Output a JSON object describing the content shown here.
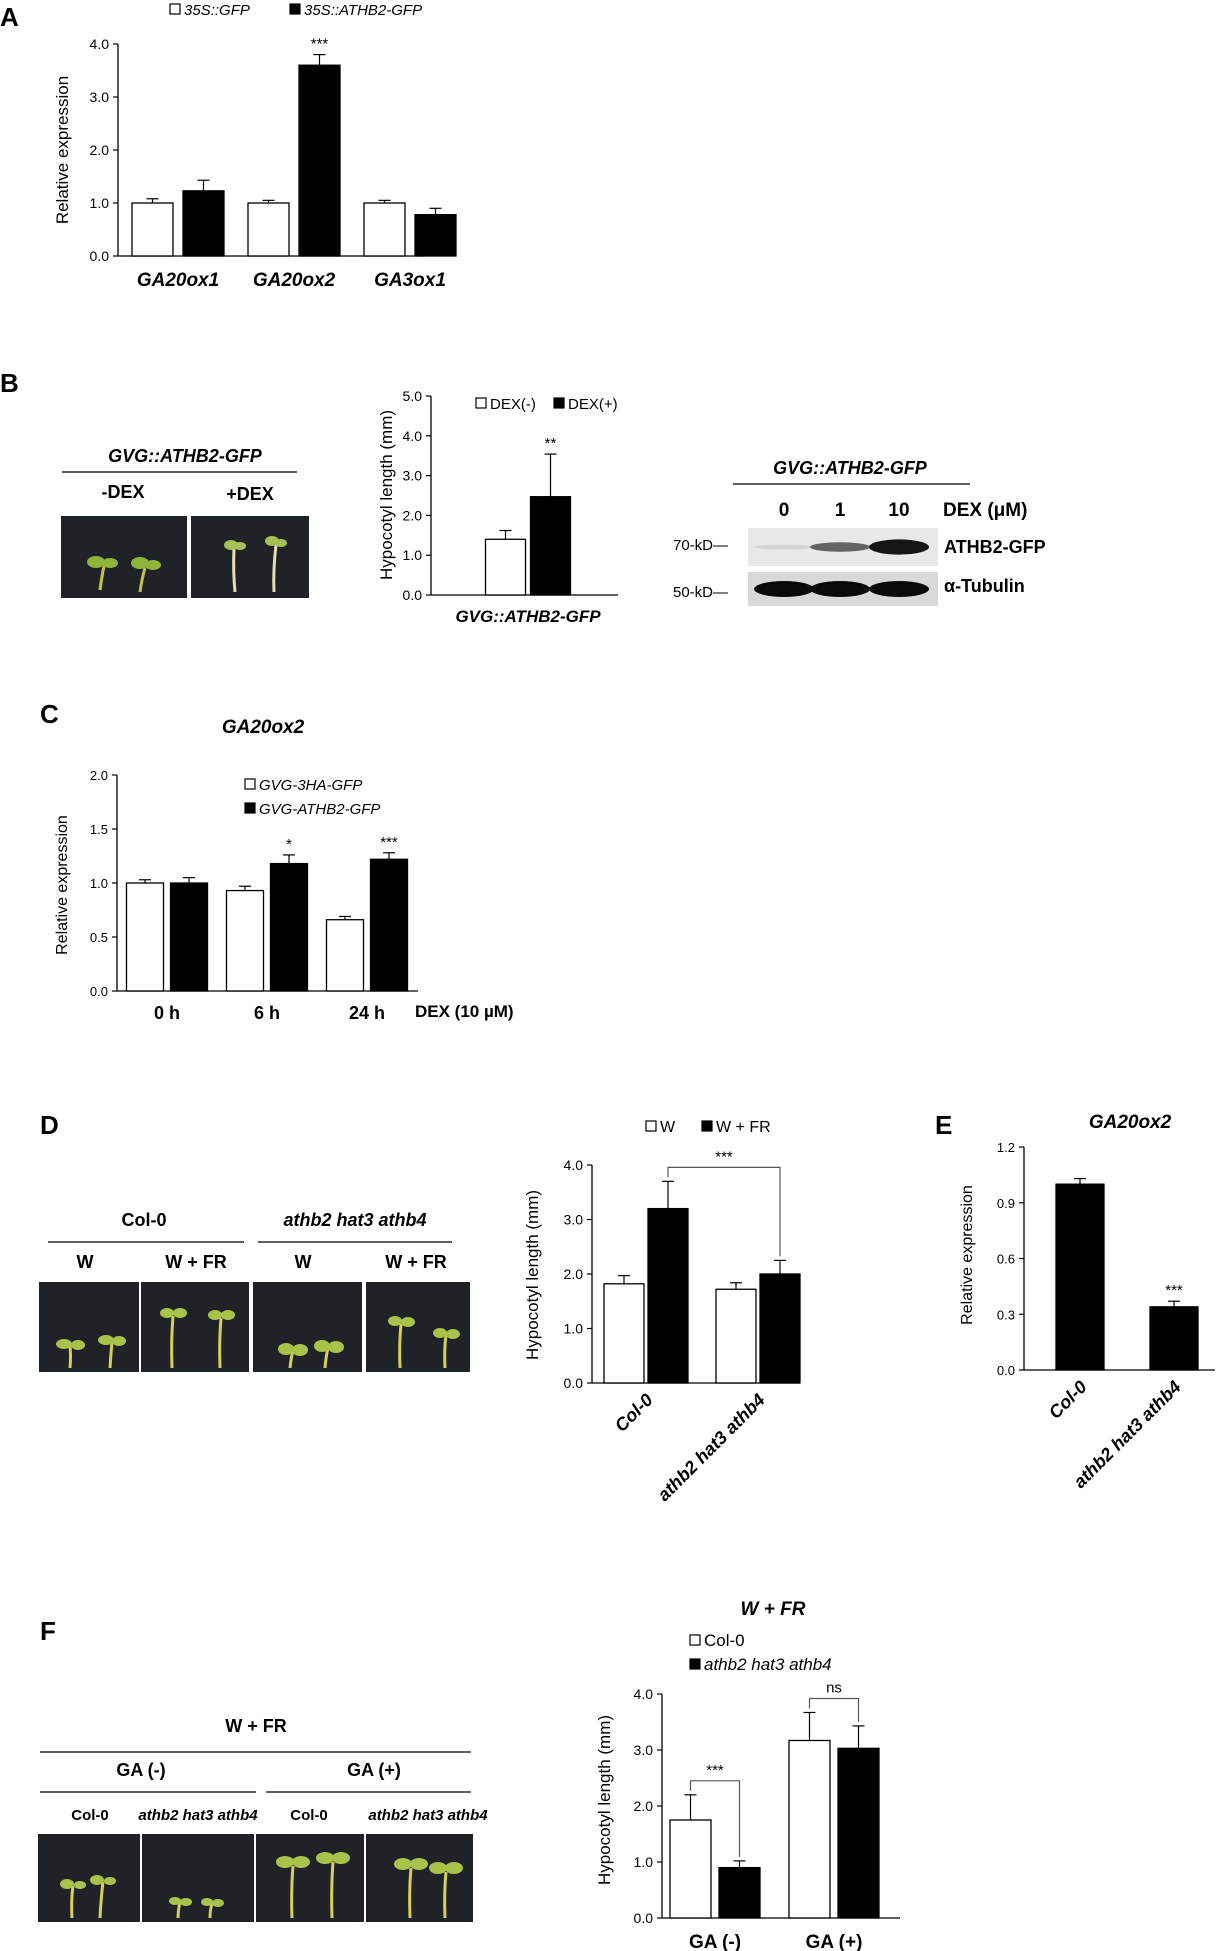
{
  "panels": {
    "A": "A",
    "B": "B",
    "C": "C",
    "D": "D",
    "E": "E",
    "F": "F"
  },
  "panel_B": {
    "construct_label": "GVG::ATHB2-GFP",
    "photo_labels": [
      "-DEX",
      "+DEX"
    ],
    "blot": {
      "construct_label": "GVG::ATHB2-GFP",
      "lanes": [
        "0",
        "1",
        "10"
      ],
      "lane_unit": "DEX (μM)",
      "markers": [
        "70-kD—",
        "50-kD—"
      ],
      "bands": [
        "ATHB2-GFP",
        "α-Tubulin"
      ],
      "band_intensity": {
        "ATHB2-GFP": [
          0.1,
          0.6,
          0.95
        ],
        "α-Tubulin": [
          1,
          1,
          1
        ]
      }
    }
  },
  "panel_D": {
    "genotypes": [
      "Col-0",
      "athb2 hat3 athb4"
    ],
    "conditions": [
      "W",
      "W + FR",
      "W",
      "W + FR"
    ]
  },
  "panel_F": {
    "header": "W + FR",
    "treatments": [
      "GA (-)",
      "GA (+)"
    ],
    "genotypes": [
      "Col-0",
      "athb2 hat3 athb4",
      "Col-0",
      "athb2 hat3 athb4"
    ]
  },
  "colors": {
    "open_bar": "#ffffff",
    "filled_bar": "#000000",
    "photo_background": "#1f2327",
    "seedling": "#c9c24a"
  },
  "chart_data": [
    {
      "id": "A",
      "type": "bar",
      "title": "",
      "ylabel": "Relative expression",
      "ylim": [
        0,
        4
      ],
      "yticks": [
        "0.0",
        "1.0",
        "2.0",
        "3.0",
        "4.0"
      ],
      "categories": [
        "GA20ox1",
        "GA20ox2",
        "GA3ox1"
      ],
      "legend": [
        "35S::GFP",
        "35S::ATHB2-GFP"
      ],
      "series": [
        {
          "name": "35S::GFP",
          "values": [
            1.0,
            1.0,
            1.0
          ],
          "errors": [
            0.08,
            0.05,
            0.05
          ]
        },
        {
          "name": "35S::ATHB2-GFP",
          "values": [
            1.23,
            3.6,
            0.78
          ],
          "errors": [
            0.2,
            0.2,
            0.12
          ]
        }
      ],
      "annotations": [
        {
          "category": "GA20ox2",
          "series": 1,
          "text": "***"
        }
      ]
    },
    {
      "id": "B",
      "type": "bar",
      "title": "",
      "ylabel": "Hypocotyl length (mm)",
      "ylim": [
        0,
        5
      ],
      "yticks": [
        "0.0",
        "1.0",
        "2.0",
        "3.0",
        "4.0",
        "5.0"
      ],
      "categories": [
        "GVG::ATHB2-GFP"
      ],
      "legend": [
        "DEX(-)",
        "DEX(+)"
      ],
      "series": [
        {
          "name": "DEX(-)",
          "values": [
            1.4
          ],
          "errors": [
            0.22
          ]
        },
        {
          "name": "DEX(+)",
          "values": [
            2.47
          ],
          "errors": [
            1.07
          ]
        }
      ],
      "annotations": [
        {
          "category": "GVG::ATHB2-GFP",
          "series": 1,
          "text": "**"
        }
      ]
    },
    {
      "id": "C",
      "type": "bar",
      "title": "GA20ox2",
      "ylabel": "Relative expression",
      "xlabel": "DEX (10 µM)",
      "ylim": [
        0,
        2
      ],
      "yticks": [
        "0.0",
        "0.5",
        "1.0",
        "1.5",
        "2.0"
      ],
      "categories": [
        "0 h",
        "6 h",
        "24 h"
      ],
      "legend": [
        "GVG-3HA-GFP",
        "GVG-ATHB2-GFP"
      ],
      "series": [
        {
          "name": "GVG-3HA-GFP",
          "values": [
            1.0,
            0.93,
            0.66
          ],
          "errors": [
            0.03,
            0.04,
            0.03
          ]
        },
        {
          "name": "GVG-ATHB2-GFP",
          "values": [
            1.0,
            1.18,
            1.22
          ],
          "errors": [
            0.05,
            0.08,
            0.06
          ]
        }
      ],
      "annotations": [
        {
          "category": "6 h",
          "series": 1,
          "text": "*"
        },
        {
          "category": "24 h",
          "series": 1,
          "text": "***"
        }
      ]
    },
    {
      "id": "D",
      "type": "bar",
      "title": "",
      "ylabel": "Hypocotyl length (mm)",
      "ylim": [
        0,
        4
      ],
      "yticks": [
        "0.0",
        "1.0",
        "2.0",
        "3.0",
        "4.0"
      ],
      "categories": [
        "Col-0",
        "athb2 hat3 athb4"
      ],
      "legend": [
        "W",
        "W + FR"
      ],
      "series": [
        {
          "name": "W",
          "values": [
            1.82,
            1.72
          ],
          "errors": [
            0.15,
            0.12
          ]
        },
        {
          "name": "W + FR",
          "values": [
            3.2,
            2.0
          ],
          "errors": [
            0.5,
            0.25
          ]
        }
      ],
      "brackets": [
        {
          "from": [
            0,
            1
          ],
          "to": [
            1,
            1
          ],
          "text": "***"
        }
      ]
    },
    {
      "id": "E",
      "type": "bar",
      "title": "GA20ox2",
      "ylabel": "Relative expression",
      "ylim": [
        0,
        1.2
      ],
      "yticks": [
        "0.0",
        "0.3",
        "0.6",
        "0.9",
        "1.2"
      ],
      "categories": [
        "Col-0",
        "athb2 hat3 athb4"
      ],
      "series": [
        {
          "values": [
            1.0,
            0.34
          ],
          "errors": [
            0.03,
            0.03
          ]
        }
      ],
      "annotations": [
        {
          "category": "athb2 hat3 athb4",
          "series": 0,
          "text": "***"
        }
      ]
    },
    {
      "id": "F",
      "type": "bar",
      "title": "W + FR",
      "ylabel": "Hypocotyl length (mm)",
      "ylim": [
        0,
        4
      ],
      "yticks": [
        "0.0",
        "1.0",
        "2.0",
        "3.0",
        "4.0"
      ],
      "categories": [
        "GA (-)",
        "GA (+)"
      ],
      "legend": [
        "Col-0",
        "athb2 hat3 athb4"
      ],
      "series": [
        {
          "name": "Col-0",
          "values": [
            1.75,
            3.17
          ],
          "errors": [
            0.45,
            0.5
          ]
        },
        {
          "name": "athb2 hat3 athb4",
          "values": [
            0.9,
            3.03
          ],
          "errors": [
            0.12,
            0.4
          ]
        }
      ],
      "brackets": [
        {
          "from": [
            0,
            0
          ],
          "to": [
            0,
            1
          ],
          "text": "***"
        },
        {
          "from": [
            1,
            0
          ],
          "to": [
            1,
            1
          ],
          "text": "ns"
        }
      ]
    }
  ]
}
